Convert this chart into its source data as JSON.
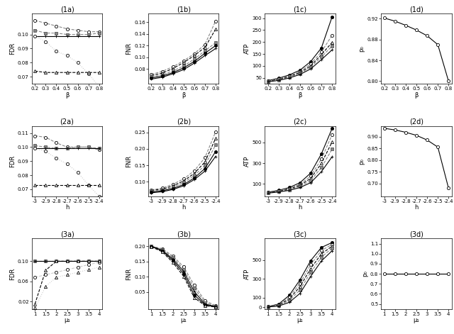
{
  "row1_xvals": [
    0.2,
    0.3,
    0.4,
    0.5,
    0.6,
    0.7,
    0.8
  ],
  "row2_xvals": [
    -3.0,
    -2.9,
    -2.8,
    -2.7,
    -2.6,
    -2.5,
    -2.4
  ],
  "row3_xvals": [
    1.0,
    1.5,
    2.0,
    2.5,
    3.0,
    3.5,
    4.0
  ],
  "plot1a": {
    "title": "(1a)",
    "xlabel": "β",
    "ylabel": "FDR",
    "ylim": [
      0.065,
      0.115
    ],
    "yticks": [
      0.07,
      0.08,
      0.09,
      0.1
    ],
    "lines": [
      {
        "y": [
          0.11,
          0.108,
          0.106,
          0.104,
          0.103,
          0.102,
          0.102
        ],
        "marker": "o",
        "ls": "--",
        "color": "#888888",
        "mfc": "white"
      },
      {
        "y": [
          0.103,
          0.101,
          0.101,
          0.1,
          0.1,
          0.1,
          0.101
        ],
        "marker": "s",
        "ls": "--",
        "color": "#888888",
        "mfc": "#888888"
      },
      {
        "y": [
          0.099,
          0.099,
          0.099,
          0.099,
          0.099,
          0.099,
          0.099
        ],
        "marker": "+",
        "ls": "-",
        "color": "black",
        "mfc": "black"
      },
      {
        "y": [
          0.099,
          0.095,
          0.088,
          0.085,
          0.08,
          0.072,
          0.063
        ],
        "marker": "o",
        "ls": ":",
        "color": "#cccccc",
        "mfc": "white"
      },
      {
        "y": [
          0.074,
          0.073,
          0.073,
          0.073,
          0.073,
          0.073,
          0.073
        ],
        "marker": "^",
        "ls": "--",
        "color": "black",
        "mfc": "white"
      }
    ]
  },
  "plot1b": {
    "title": "(1b)",
    "xlabel": "β",
    "ylabel": "FNR",
    "ylim": [
      0.055,
      0.175
    ],
    "yticks": [
      0.08,
      0.1,
      0.12,
      0.14,
      0.16
    ],
    "lines": [
      {
        "y": [
          0.071,
          0.076,
          0.084,
          0.094,
          0.106,
          0.122,
          0.162
        ],
        "marker": "o",
        "ls": "--",
        "color": "#888888",
        "mfc": "white"
      },
      {
        "y": [
          0.069,
          0.073,
          0.081,
          0.091,
          0.103,
          0.117,
          0.148
        ],
        "marker": "^",
        "ls": "--",
        "color": "black",
        "mfc": "white"
      },
      {
        "y": [
          0.067,
          0.07,
          0.077,
          0.085,
          0.097,
          0.111,
          0.125
        ],
        "marker": "s",
        "ls": "--",
        "color": "#888888",
        "mfc": "#888888"
      },
      {
        "y": [
          0.065,
          0.068,
          0.074,
          0.082,
          0.093,
          0.107,
          0.12
        ],
        "marker": "o",
        "ls": "-",
        "color": "black",
        "mfc": "black"
      },
      {
        "y": [
          0.063,
          0.066,
          0.072,
          0.079,
          0.09,
          0.103,
          0.115
        ],
        "marker": "+",
        "ls": "-",
        "color": "black",
        "mfc": "black"
      }
    ]
  },
  "plot1c": {
    "title": "(1c)",
    "xlabel": "β",
    "ylabel": "ATP",
    "ylim": [
      25,
      320
    ],
    "yticks": [
      50,
      100,
      150,
      200,
      250,
      300
    ],
    "lines": [
      {
        "y": [
          38,
          48,
          62,
          82,
          118,
          175,
          305
        ],
        "marker": "o",
        "ls": "-",
        "color": "black",
        "mfc": "black"
      },
      {
        "y": [
          36,
          45,
          58,
          76,
          108,
          158,
          228
        ],
        "marker": "o",
        "ls": "--",
        "color": "#888888",
        "mfc": "white"
      },
      {
        "y": [
          35,
          43,
          55,
          72,
          100,
          147,
          198
        ],
        "marker": "^",
        "ls": "--",
        "color": "black",
        "mfc": "white"
      },
      {
        "y": [
          34,
          41,
          52,
          68,
          94,
          137,
          183
        ],
        "marker": "s",
        "ls": "--",
        "color": "#888888",
        "mfc": "#888888"
      },
      {
        "y": [
          33,
          39,
          49,
          64,
          87,
          126,
          167
        ],
        "marker": "+",
        "ls": "-",
        "color": "black",
        "mfc": "black"
      }
    ]
  },
  "plot1d": {
    "title": "(1d)",
    "xlabel": "β",
    "ylabel": "p₀",
    "ylim": [
      0.795,
      0.93
    ],
    "yticks": [
      0.8,
      0.84,
      0.88,
      0.92
    ],
    "lines": [
      {
        "y": [
          0.921,
          0.915,
          0.907,
          0.898,
          0.887,
          0.87,
          0.8
        ],
        "marker": "o",
        "ls": "-",
        "color": "black",
        "mfc": "white"
      }
    ]
  },
  "plot2a": {
    "title": "(2a)",
    "xlabel": "h",
    "ylabel": "FDR",
    "ylim": [
      0.065,
      0.115
    ],
    "yticks": [
      0.07,
      0.08,
      0.09,
      0.1,
      0.11
    ],
    "lines": [
      {
        "y": [
          0.108,
          0.107,
          0.103,
          0.1,
          0.1,
          0.1,
          0.098
        ],
        "marker": "o",
        "ls": "--",
        "color": "#888888",
        "mfc": "white"
      },
      {
        "y": [
          0.101,
          0.1,
          0.099,
          0.099,
          0.1,
          0.1,
          0.099
        ],
        "marker": "s",
        "ls": "--",
        "color": "#888888",
        "mfc": "#888888"
      },
      {
        "y": [
          0.099,
          0.099,
          0.099,
          0.099,
          0.099,
          0.099,
          0.099
        ],
        "marker": "+",
        "ls": "-",
        "color": "black",
        "mfc": "black"
      },
      {
        "y": [
          0.099,
          0.097,
          0.092,
          0.088,
          0.082,
          0.073,
          0.065
        ],
        "marker": "o",
        "ls": ":",
        "color": "#cccccc",
        "mfc": "white"
      },
      {
        "y": [
          0.073,
          0.073,
          0.073,
          0.073,
          0.073,
          0.073,
          0.073
        ],
        "marker": "^",
        "ls": "--",
        "color": "black",
        "mfc": "white"
      }
    ]
  },
  "plot2b": {
    "title": "(2b)",
    "xlabel": "h",
    "ylabel": "FNR",
    "ylim": [
      0.055,
      0.27
    ],
    "yticks": [
      0.1,
      0.15,
      0.2,
      0.25
    ],
    "lines": [
      {
        "y": [
          0.075,
          0.08,
          0.092,
          0.108,
          0.133,
          0.173,
          0.252
        ],
        "marker": "o",
        "ls": "--",
        "color": "#888888",
        "mfc": "white"
      },
      {
        "y": [
          0.073,
          0.077,
          0.087,
          0.102,
          0.125,
          0.16,
          0.232
        ],
        "marker": "^",
        "ls": "--",
        "color": "black",
        "mfc": "white"
      },
      {
        "y": [
          0.07,
          0.074,
          0.083,
          0.097,
          0.118,
          0.15,
          0.212
        ],
        "marker": "s",
        "ls": "--",
        "color": "#888888",
        "mfc": "#888888"
      },
      {
        "y": [
          0.068,
          0.072,
          0.079,
          0.091,
          0.111,
          0.14,
          0.192
        ],
        "marker": "o",
        "ls": "-",
        "color": "black",
        "mfc": "black"
      },
      {
        "y": [
          0.066,
          0.069,
          0.076,
          0.087,
          0.106,
          0.132,
          0.177
        ],
        "marker": "+",
        "ls": "-",
        "color": "black",
        "mfc": "black"
      }
    ]
  },
  "plot2c": {
    "title": "(2c)",
    "xlabel": "h",
    "ylabel": "ATP",
    "ylim": [
      -20,
      660
    ],
    "yticks": [
      100,
      300,
      500
    ],
    "lines": [
      {
        "y": [
          20,
          38,
          65,
          112,
          205,
          390,
          635
        ],
        "marker": "o",
        "ls": "-",
        "color": "black",
        "mfc": "black"
      },
      {
        "y": [
          17,
          33,
          56,
          96,
          175,
          340,
          575
        ],
        "marker": "o",
        "ls": "--",
        "color": "#888888",
        "mfc": "white"
      },
      {
        "y": [
          15,
          29,
          50,
          86,
          153,
          298,
          505
        ],
        "marker": "^",
        "ls": "--",
        "color": "black",
        "mfc": "white"
      },
      {
        "y": [
          13,
          25,
          44,
          76,
          132,
          258,
          435
        ],
        "marker": "s",
        "ls": "--",
        "color": "#888888",
        "mfc": "#888888"
      },
      {
        "y": [
          11,
          22,
          38,
          65,
          112,
          218,
          362
        ],
        "marker": "+",
        "ls": "-",
        "color": "black",
        "mfc": "black"
      }
    ]
  },
  "plot2d": {
    "title": "(2d)",
    "xlabel": "h",
    "ylabel": "p₀",
    "ylim": [
      0.645,
      0.945
    ],
    "yticks": [
      0.7,
      0.75,
      0.8,
      0.85,
      0.9
    ],
    "lines": [
      {
        "y": [
          0.935,
          0.928,
          0.918,
          0.905,
          0.885,
          0.855,
          0.68
        ],
        "marker": "o",
        "ls": "-",
        "color": "black",
        "mfc": "white"
      }
    ]
  },
  "plot3a": {
    "title": "(3a)",
    "xlabel": "μ₁",
    "ylabel": "FDR",
    "ylim": [
      0.005,
      0.145
    ],
    "yticks": [
      0.02,
      0.06,
      0.1
    ],
    "lines": [
      {
        "y": [
          0.1,
          0.1,
          0.1,
          0.1,
          0.1,
          0.1,
          0.1
        ],
        "marker": "o",
        "ls": "--",
        "color": "#888888",
        "mfc": "white"
      },
      {
        "y": [
          0.1,
          0.1,
          0.1,
          0.1,
          0.1,
          0.1,
          0.1
        ],
        "marker": "s",
        "ls": "--",
        "color": "#888888",
        "mfc": "#888888"
      },
      {
        "y": [
          0.1,
          0.1,
          0.1,
          0.1,
          0.1,
          0.1,
          0.1
        ],
        "marker": "+",
        "ls": "-",
        "color": "black",
        "mfc": "black"
      },
      {
        "y": [
          0.068,
          0.073,
          0.078,
          0.083,
          0.088,
          0.093,
          0.098
        ],
        "marker": "o",
        "ls": "--",
        "color": "#cccccc",
        "mfc": "white"
      },
      {
        "y": [
          0.015,
          0.082,
          0.1,
          0.1,
          0.1,
          0.1,
          0.1
        ],
        "marker": "^",
        "ls": "--",
        "color": "black",
        "mfc": "white"
      },
      {
        "y": [
          0.007,
          0.05,
          0.068,
          0.073,
          0.078,
          0.083,
          0.088
        ],
        "marker": "^",
        "ls": ":",
        "color": "#cccccc",
        "mfc": "white"
      }
    ]
  },
  "plot3b": {
    "title": "(3b)",
    "xlabel": "μ₁",
    "ylabel": "FNR",
    "ylim": [
      -0.005,
      0.225
    ],
    "yticks": [
      0.05,
      0.1,
      0.15,
      0.2
    ],
    "lines": [
      {
        "y": [
          0.2,
          0.192,
          0.168,
          0.133,
          0.073,
          0.022,
          0.006
        ],
        "marker": "o",
        "ls": "--",
        "color": "#888888",
        "mfc": "white"
      },
      {
        "y": [
          0.2,
          0.19,
          0.163,
          0.125,
          0.063,
          0.016,
          0.004
        ],
        "marker": "s",
        "ls": "--",
        "color": "#888888",
        "mfc": "#888888"
      },
      {
        "y": [
          0.2,
          0.187,
          0.158,
          0.118,
          0.052,
          0.011,
          0.003
        ],
        "marker": "+",
        "ls": "-",
        "color": "black",
        "mfc": "black"
      },
      {
        "y": [
          0.199,
          0.185,
          0.153,
          0.11,
          0.041,
          0.008,
          0.002
        ],
        "marker": "o",
        "ls": "-",
        "color": "black",
        "mfc": "black"
      },
      {
        "y": [
          0.198,
          0.182,
          0.147,
          0.102,
          0.032,
          0.006,
          0.001
        ],
        "marker": "^",
        "ls": "--",
        "color": "black",
        "mfc": "white"
      }
    ]
  },
  "plot3c": {
    "title": "(3c)",
    "xlabel": "μ₁",
    "ylabel": "ATP",
    "ylim": [
      -20,
      730
    ],
    "yticks": [
      0,
      100,
      300,
      500
    ],
    "lines": [
      {
        "y": [
          5,
          32,
          125,
          290,
          495,
          635,
          688
        ],
        "marker": "o",
        "ls": "-",
        "color": "black",
        "mfc": "black"
      },
      {
        "y": [
          4,
          26,
          104,
          253,
          452,
          602,
          668
        ],
        "marker": "o",
        "ls": "--",
        "color": "#888888",
        "mfc": "white"
      },
      {
        "y": [
          3,
          21,
          85,
          218,
          410,
          567,
          648
        ],
        "marker": "^",
        "ls": "--",
        "color": "black",
        "mfc": "white"
      },
      {
        "y": [
          2,
          16,
          68,
          182,
          369,
          531,
          628
        ],
        "marker": "s",
        "ls": "--",
        "color": "#888888",
        "mfc": "#888888"
      },
      {
        "y": [
          1,
          11,
          50,
          146,
          327,
          491,
          600
        ],
        "marker": "+",
        "ls": "-",
        "color": "black",
        "mfc": "black"
      }
    ]
  },
  "plot3d": {
    "title": "(3d)",
    "xlabel": "μ₁",
    "ylabel": "p₀",
    "ylim": [
      0.45,
      1.15
    ],
    "yticks": [
      0.5,
      0.6,
      0.7,
      0.8,
      0.9,
      1.0,
      1.1
    ],
    "lines": [
      {
        "y": [
          0.8,
          0.8,
          0.8,
          0.8,
          0.8,
          0.8,
          0.8
        ],
        "marker": "o",
        "ls": "-",
        "color": "black",
        "mfc": "white"
      }
    ]
  }
}
